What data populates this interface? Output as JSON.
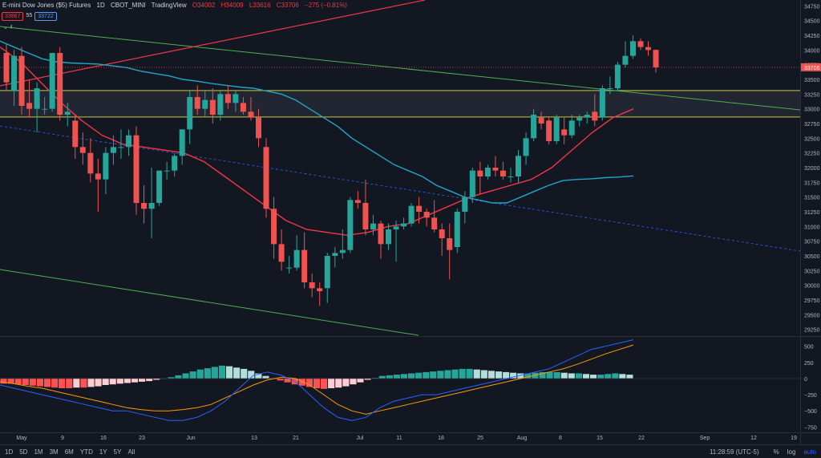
{
  "header": {
    "symbol": "E-mini Dow Jones ($5) Futures",
    "interval": "1D",
    "exchange": "CBOT_MINI",
    "source": "TradingView",
    "open": "O34002",
    "high": "H34009",
    "low": "L33616",
    "close": "C33706",
    "change": "−275 (−0.81%)"
  },
  "badges": {
    "sell": "33667",
    "ss": "55",
    "buy": "33722"
  },
  "indicator_toggle": "4",
  "price_axis": {
    "ticks": [
      34750,
      34500,
      34250,
      34000,
      33750,
      33500,
      33250,
      33000,
      32750,
      32500,
      32250,
      32000,
      31750,
      31500,
      31250,
      31000,
      30750,
      30500,
      30250,
      30000,
      29750,
      29500,
      29250
    ]
  },
  "current_price_label": "33706",
  "macd_axis": {
    "ticks": [
      500,
      250,
      0,
      -250,
      -500,
      -750
    ]
  },
  "macd_tick_labels": [
    "500",
    "250",
    "0",
    "−250",
    "−500",
    "−750"
  ],
  "x_axis": {
    "labels": [
      "May",
      "9",
      "16",
      "23",
      "Jun",
      "13",
      "21",
      "Jul",
      "11",
      "18",
      "25",
      "Aug",
      "8",
      "15",
      "22",
      "Sep",
      "12",
      "19"
    ]
  },
  "footer": {
    "ranges": [
      "1D",
      "5D",
      "1M",
      "3M",
      "6M",
      "YTD",
      "1Y",
      "5Y",
      "All"
    ],
    "time": "11:28:59 (UTC-5)",
    "pct": "%",
    "log": "log",
    "auto": "auto"
  },
  "colors": {
    "bg": "#131722",
    "up": "#26a69a",
    "down": "#ef5350",
    "ma_fast": "#f23645",
    "ma_slow": "#22a6c7",
    "trend_green": "#4caf50",
    "trend_red": "#f23645",
    "band": "#c8c84a",
    "macd": "#2962ff",
    "signal": "#ff9800"
  },
  "chart_data": {
    "type": "candlestick",
    "candles": [
      {
        "o": 33950,
        "h": 34100,
        "l": 33300,
        "c": 33450
      },
      {
        "o": 33300,
        "h": 34000,
        "l": 33050,
        "c": 33900
      },
      {
        "o": 33900,
        "h": 34050,
        "l": 32900,
        "c": 33050
      },
      {
        "o": 33100,
        "h": 33500,
        "l": 32850,
        "c": 33000
      },
      {
        "o": 33000,
        "h": 33450,
        "l": 32600,
        "c": 33350
      },
      {
        "o": 33000,
        "h": 33200,
        "l": 32900,
        "c": 33000
      },
      {
        "o": 33000,
        "h": 33950,
        "l": 32950,
        "c": 33950
      },
      {
        "o": 33950,
        "h": 34050,
        "l": 32800,
        "c": 32900
      },
      {
        "o": 32900,
        "h": 33100,
        "l": 32700,
        "c": 32950
      },
      {
        "o": 32800,
        "h": 32900,
        "l": 32150,
        "c": 32350
      },
      {
        "o": 32350,
        "h": 32600,
        "l": 32050,
        "c": 32250
      },
      {
        "o": 32250,
        "h": 32500,
        "l": 31750,
        "c": 31900
      },
      {
        "o": 31900,
        "h": 32150,
        "l": 31250,
        "c": 31800
      },
      {
        "o": 31800,
        "h": 32350,
        "l": 31550,
        "c": 32250
      },
      {
        "o": 32250,
        "h": 32550,
        "l": 32050,
        "c": 32350
      },
      {
        "o": 32350,
        "h": 32650,
        "l": 32150,
        "c": 32350
      },
      {
        "o": 32350,
        "h": 32650,
        "l": 32200,
        "c": 32550
      },
      {
        "o": 32550,
        "h": 32700,
        "l": 31200,
        "c": 31400
      },
      {
        "o": 31400,
        "h": 31700,
        "l": 31050,
        "c": 31300
      },
      {
        "o": 31300,
        "h": 32000,
        "l": 30800,
        "c": 31400
      },
      {
        "o": 31400,
        "h": 31950,
        "l": 31350,
        "c": 31950
      },
      {
        "o": 31950,
        "h": 32100,
        "l": 31800,
        "c": 31950
      },
      {
        "o": 31950,
        "h": 32250,
        "l": 31850,
        "c": 32200
      },
      {
        "o": 32200,
        "h": 32650,
        "l": 32050,
        "c": 32650
      },
      {
        "o": 32650,
        "h": 33300,
        "l": 32400,
        "c": 33200
      },
      {
        "o": 33200,
        "h": 33400,
        "l": 32900,
        "c": 33000
      },
      {
        "o": 33000,
        "h": 33300,
        "l": 32850,
        "c": 33150
      },
      {
        "o": 33150,
        "h": 33350,
        "l": 32750,
        "c": 32900
      },
      {
        "o": 32900,
        "h": 33300,
        "l": 32800,
        "c": 33250
      },
      {
        "o": 33250,
        "h": 33400,
        "l": 33000,
        "c": 33100
      },
      {
        "o": 33100,
        "h": 33300,
        "l": 32950,
        "c": 33250
      },
      {
        "o": 33100,
        "h": 33200,
        "l": 32900,
        "c": 32950
      },
      {
        "o": 32950,
        "h": 33200,
        "l": 32800,
        "c": 32850
      },
      {
        "o": 32850,
        "h": 33000,
        "l": 32350,
        "c": 32500
      },
      {
        "o": 32350,
        "h": 32500,
        "l": 31150,
        "c": 31300
      },
      {
        "o": 31300,
        "h": 31500,
        "l": 30450,
        "c": 30700
      },
      {
        "o": 30700,
        "h": 30950,
        "l": 30250,
        "c": 30400
      },
      {
        "o": 30300,
        "h": 30500,
        "l": 30200,
        "c": 30300
      },
      {
        "o": 30300,
        "h": 30850,
        "l": 30250,
        "c": 30600
      },
      {
        "o": 30600,
        "h": 30900,
        "l": 29950,
        "c": 30050
      },
      {
        "o": 30050,
        "h": 30200,
        "l": 29800,
        "c": 29950
      },
      {
        "o": 29950,
        "h": 30050,
        "l": 29650,
        "c": 29900
      },
      {
        "o": 29950,
        "h": 30550,
        "l": 29700,
        "c": 30500
      },
      {
        "o": 30500,
        "h": 30650,
        "l": 30300,
        "c": 30550
      },
      {
        "o": 30550,
        "h": 30950,
        "l": 30450,
        "c": 30600
      },
      {
        "o": 30600,
        "h": 31500,
        "l": 30550,
        "c": 31450
      },
      {
        "o": 31450,
        "h": 31600,
        "l": 31300,
        "c": 31400
      },
      {
        "o": 31400,
        "h": 31800,
        "l": 30850,
        "c": 30950
      },
      {
        "o": 30950,
        "h": 31200,
        "l": 30850,
        "c": 31050
      },
      {
        "o": 31050,
        "h": 31100,
        "l": 30450,
        "c": 30700
      },
      {
        "o": 30700,
        "h": 31050,
        "l": 30600,
        "c": 30950
      },
      {
        "o": 30950,
        "h": 31100,
        "l": 30400,
        "c": 31000
      },
      {
        "o": 31000,
        "h": 31150,
        "l": 30950,
        "c": 31050
      },
      {
        "o": 31050,
        "h": 31400,
        "l": 31000,
        "c": 31350
      },
      {
        "o": 31350,
        "h": 31500,
        "l": 31050,
        "c": 31250
      },
      {
        "o": 31250,
        "h": 31300,
        "l": 31000,
        "c": 31150
      },
      {
        "o": 31150,
        "h": 31450,
        "l": 30900,
        "c": 30950
      },
      {
        "o": 30950,
        "h": 31050,
        "l": 30500,
        "c": 30800
      },
      {
        "o": 30800,
        "h": 31050,
        "l": 30100,
        "c": 30600
      },
      {
        "o": 30650,
        "h": 31300,
        "l": 30550,
        "c": 31250
      },
      {
        "o": 31250,
        "h": 31600,
        "l": 31050,
        "c": 31500
      },
      {
        "o": 31500,
        "h": 32000,
        "l": 31400,
        "c": 31950
      },
      {
        "o": 31950,
        "h": 32100,
        "l": 31550,
        "c": 31850
      },
      {
        "o": 31850,
        "h": 32050,
        "l": 31800,
        "c": 32000
      },
      {
        "o": 32000,
        "h": 32200,
        "l": 31850,
        "c": 31950
      },
      {
        "o": 31950,
        "h": 32100,
        "l": 31800,
        "c": 31850
      },
      {
        "o": 31850,
        "h": 32000,
        "l": 31750,
        "c": 31850
      },
      {
        "o": 31850,
        "h": 32300,
        "l": 31750,
        "c": 32200
      },
      {
        "o": 32200,
        "h": 32600,
        "l": 32050,
        "c": 32500
      },
      {
        "o": 32500,
        "h": 33000,
        "l": 32450,
        "c": 32900
      },
      {
        "o": 32850,
        "h": 32950,
        "l": 32650,
        "c": 32750
      },
      {
        "o": 32800,
        "h": 32850,
        "l": 32400,
        "c": 32450
      },
      {
        "o": 32450,
        "h": 32900,
        "l": 32400,
        "c": 32850
      },
      {
        "o": 32650,
        "h": 32850,
        "l": 32400,
        "c": 32550
      },
      {
        "o": 32550,
        "h": 32900,
        "l": 32500,
        "c": 32800
      },
      {
        "o": 32800,
        "h": 32900,
        "l": 32700,
        "c": 32850
      },
      {
        "o": 32850,
        "h": 32950,
        "l": 32750,
        "c": 32900
      },
      {
        "o": 32950,
        "h": 33250,
        "l": 32700,
        "c": 32800
      },
      {
        "o": 32850,
        "h": 33400,
        "l": 32800,
        "c": 33350
      },
      {
        "o": 33350,
        "h": 33550,
        "l": 33250,
        "c": 33350
      },
      {
        "o": 33350,
        "h": 33800,
        "l": 33300,
        "c": 33750
      },
      {
        "o": 33750,
        "h": 34150,
        "l": 33700,
        "c": 33900
      },
      {
        "o": 33900,
        "h": 34250,
        "l": 33850,
        "c": 34150
      },
      {
        "o": 34150,
        "h": 34200,
        "l": 34000,
        "c": 34050
      },
      {
        "o": 34050,
        "h": 34150,
        "l": 33900,
        "c": 34000
      },
      {
        "o": 34002,
        "h": 34009,
        "l": 33616,
        "c": 33706
      }
    ],
    "ma_slow": [
      34150,
      34050,
      33950,
      33850,
      33800,
      33780,
      33770,
      33760,
      33730,
      33700,
      33640,
      33600,
      33560,
      33500,
      33470,
      33430,
      33400,
      33370,
      33350,
      33300,
      33250,
      33150,
      33000,
      32850,
      32700,
      32500,
      32350,
      32200,
      32050,
      31950,
      31850,
      31700,
      31600,
      31500,
      31450,
      31400,
      31400,
      31500,
      31600,
      31700,
      31780,
      31800,
      31810,
      31830,
      31840,
      31860
    ],
    "ma_fast": [
      34050,
      33800,
      33450,
      33100,
      32800,
      32550,
      32400,
      32350,
      32300,
      32250,
      32100,
      31850,
      31600,
      31350,
      31100,
      30950,
      30900,
      30850,
      30900,
      31000,
      31050,
      31200,
      31350,
      31500,
      31600,
      31700,
      31800,
      32000,
      32300,
      32600,
      32850,
      33000
    ],
    "macd": [
      -100,
      -150,
      -200,
      -250,
      -300,
      -350,
      -400,
      -450,
      -500,
      -500,
      -550,
      -600,
      -650,
      -650,
      -600,
      -500,
      -350,
      -150,
      50,
      100,
      50,
      -50,
      -250,
      -450,
      -600,
      -650,
      -600,
      -450,
      -350,
      -300,
      -250,
      -250,
      -200,
      -150,
      -100,
      -50,
      0,
      50,
      100,
      150,
      250,
      350,
      450,
      500,
      550,
      600
    ],
    "signal": [
      -50,
      -80,
      -120,
      -150,
      -200,
      -250,
      -300,
      -350,
      -400,
      -450,
      -480,
      -500,
      -500,
      -480,
      -450,
      -400,
      -300,
      -200,
      -100,
      -20,
      20,
      0,
      -100,
      -250,
      -400,
      -500,
      -550,
      -500,
      -450,
      -400,
      -350,
      -300,
      -250,
      -200,
      -150,
      -100,
      -50,
      0,
      50,
      100,
      150,
      220,
      300,
      380,
      450,
      520
    ],
    "macd_hist": [
      -80,
      -80,
      -90,
      -100,
      -110,
      -120,
      -130,
      -140,
      -150,
      -150,
      -140,
      -140,
      -130,
      -120,
      -100,
      -90,
      -80,
      -70,
      -60,
      -50,
      -40,
      -20,
      0,
      20,
      50,
      80,
      110,
      140,
      160,
      180,
      200,
      190,
      170,
      150,
      120,
      80,
      40,
      0,
      -30,
      -60,
      -90,
      -110,
      -130,
      -150,
      -160,
      -150,
      -140,
      -120,
      -90,
      -60,
      -20,
      10,
      40,
      50,
      60,
      70,
      80,
      90,
      100,
      110,
      120,
      130,
      140,
      150,
      150,
      140,
      130,
      120,
      110,
      100,
      90,
      80,
      80,
      90,
      100,
      100,
      100,
      90,
      80,
      80,
      70,
      60,
      60,
      70,
      80,
      70,
      60
    ]
  }
}
